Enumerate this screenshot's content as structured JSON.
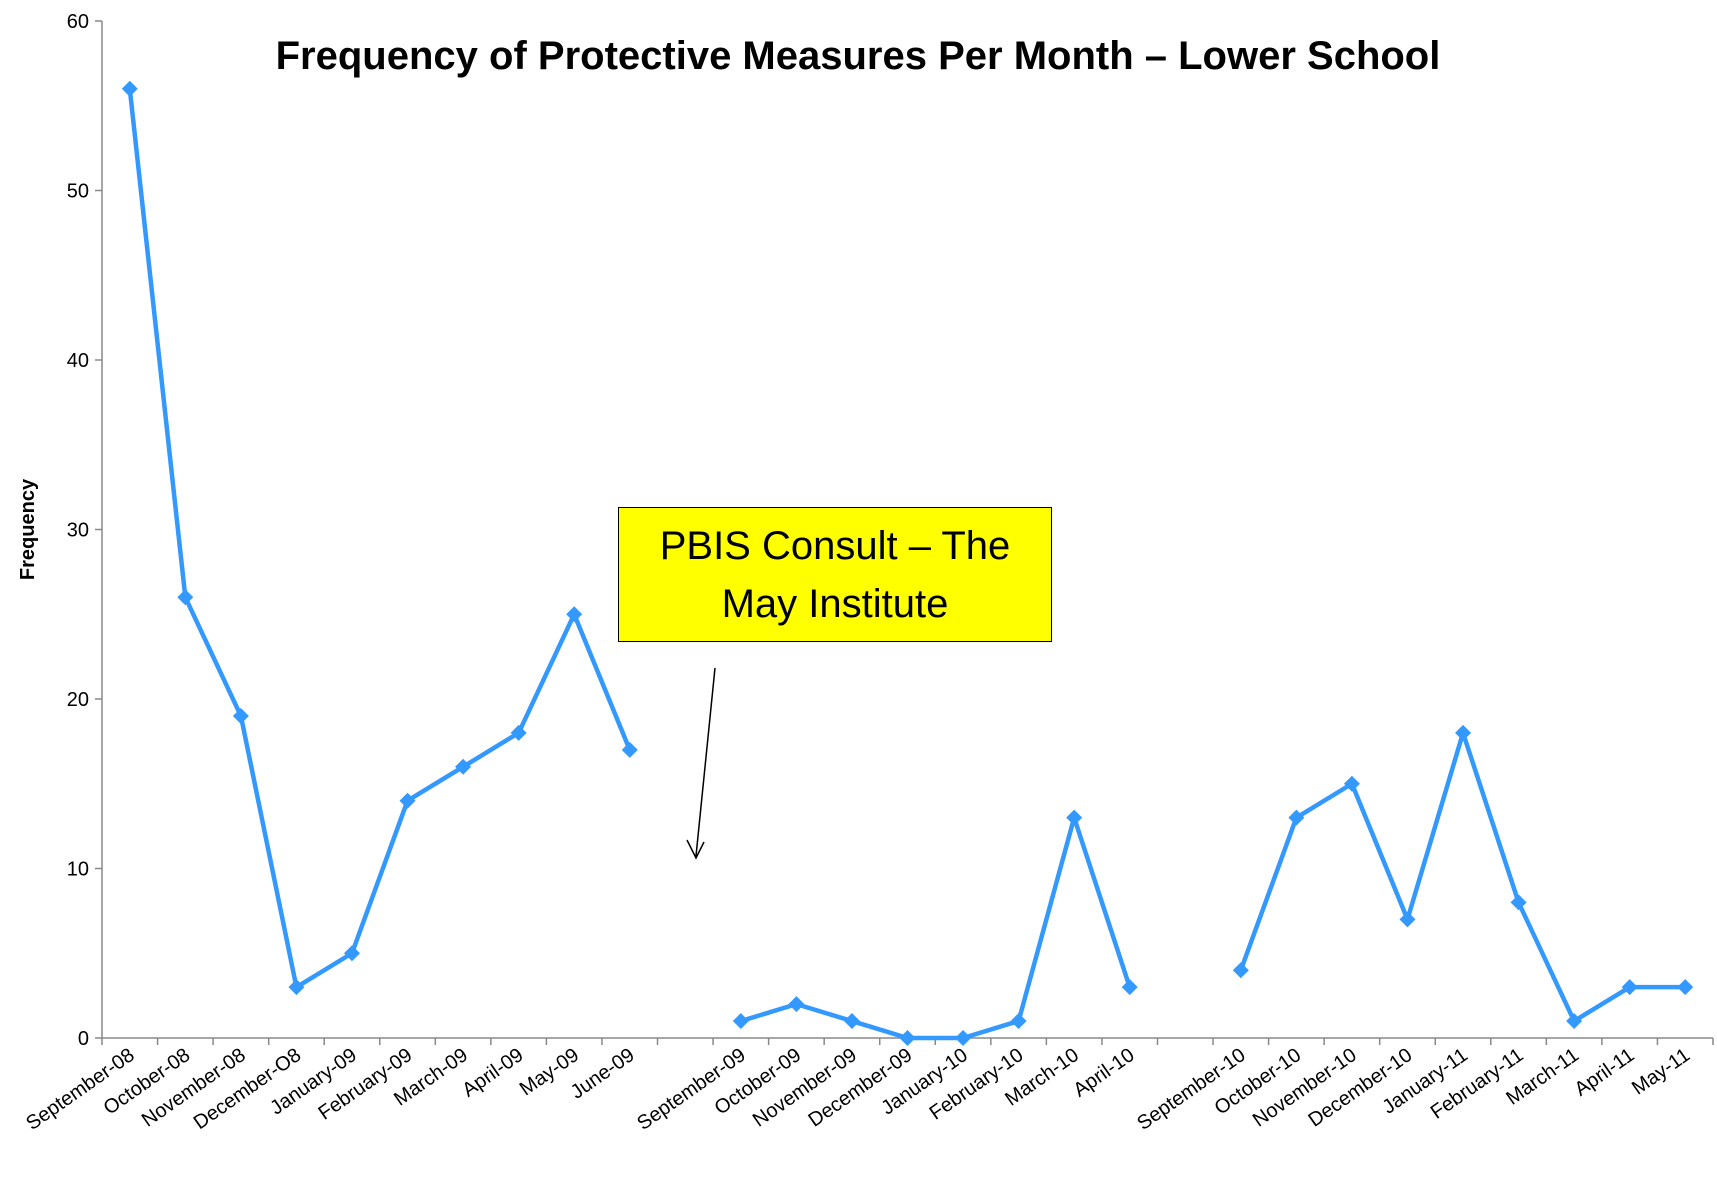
{
  "chart_data": {
    "type": "line",
    "title": "Frequency of Protective Measures Per Month – Lower School",
    "y_label": "Frequency",
    "annotation": "PBIS Consult – The May Institute",
    "categories": [
      "September-08",
      "October-08",
      "November-08",
      "December-O8",
      "January-09",
      "February-09",
      "March-09",
      "April-09",
      "May-09",
      "June-09",
      null,
      "September-09",
      "October-09",
      "November-09",
      "December-09",
      "January-10",
      "February-10",
      "March-10",
      "April-10",
      null,
      "September-10",
      "October-10",
      "November-10",
      "December-10",
      "January-11",
      "February-11",
      "March-11",
      "April-11",
      "May-11"
    ],
    "series": [
      {
        "name": "Frequency",
        "color": "#3399ff",
        "values": [
          56,
          26,
          19,
          3,
          5,
          14,
          16,
          18,
          25,
          17,
          null,
          1,
          2,
          1,
          0,
          0,
          1,
          13,
          3,
          null,
          4,
          13,
          15,
          7,
          18,
          8,
          1,
          3,
          3
        ]
      }
    ],
    "ylim": [
      0,
      60
    ],
    "yticks": [
      0,
      10,
      20,
      30,
      40,
      50,
      60
    ],
    "grid": false
  }
}
